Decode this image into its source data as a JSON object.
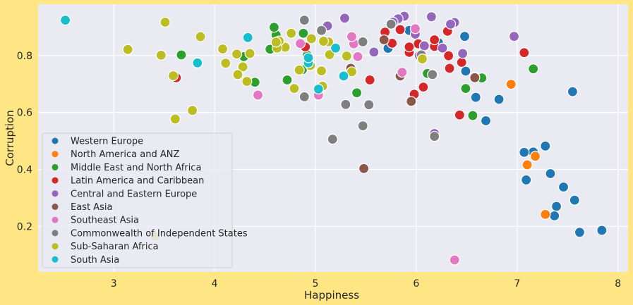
{
  "chart_data": {
    "type": "scatter",
    "title": "",
    "xlabel": "Happiness",
    "ylabel": "Corruption",
    "xlim": [
      2.25,
      8.1
    ],
    "ylim": [
      0.04,
      0.98
    ],
    "xticks": [
      3,
      4,
      5,
      6,
      7,
      8
    ],
    "yticks": [
      0.2,
      0.4,
      0.6,
      0.8
    ],
    "grid": true,
    "legend_position": "lower-left",
    "series": [
      {
        "name": "Western Europe",
        "color": "#1F77B4",
        "points": [
          [
            7.84,
            0.186
          ],
          [
            7.62,
            0.179
          ],
          [
            7.57,
            0.292
          ],
          [
            7.55,
            0.673
          ],
          [
            7.46,
            0.338
          ],
          [
            7.39,
            0.27
          ],
          [
            7.37,
            0.237
          ],
          [
            7.33,
            0.385
          ],
          [
            7.28,
            0.482
          ],
          [
            7.16,
            0.461
          ],
          [
            7.09,
            0.363
          ],
          [
            7.07,
            0.46
          ],
          [
            6.82,
            0.646
          ],
          [
            6.69,
            0.571
          ],
          [
            6.59,
            0.653
          ],
          [
            6.49,
            0.745
          ],
          [
            6.48,
            0.867
          ],
          [
            6.22,
            0.845
          ],
          [
            5.93,
            0.888
          ],
          [
            5.72,
            0.825
          ]
        ]
      },
      {
        "name": "North America and ANZ",
        "color": "#FF7F0E",
        "points": [
          [
            7.28,
            0.242
          ],
          [
            7.18,
            0.446
          ],
          [
            7.1,
            0.416
          ],
          [
            6.94,
            0.699
          ]
        ]
      },
      {
        "name": "Middle East and North Africa",
        "color": "#2CA02C",
        "points": [
          [
            7.16,
            0.753
          ],
          [
            6.65,
            0.721
          ],
          [
            6.56,
            0.589
          ],
          [
            6.49,
            0.684
          ],
          [
            6.11,
            0.737
          ],
          [
            5.41,
            0.669
          ],
          [
            4.92,
            0.801
          ],
          [
            4.88,
            0.878
          ],
          [
            4.87,
            0.75
          ],
          [
            4.72,
            0.714
          ],
          [
            4.61,
            0.872
          ],
          [
            4.59,
            0.899
          ],
          [
            4.55,
            0.822
          ],
          [
            4.4,
            0.706
          ],
          [
            4.29,
            0.796
          ],
          [
            3.67,
            0.802
          ]
        ]
      },
      {
        "name": "Latin America and Caribbean",
        "color": "#D62728",
        "points": [
          [
            7.07,
            0.81
          ],
          [
            6.58,
            0.724
          ],
          [
            6.45,
            0.776
          ],
          [
            6.43,
            0.591
          ],
          [
            6.33,
            0.755
          ],
          [
            6.32,
            0.799
          ],
          [
            6.31,
            0.885
          ],
          [
            6.18,
            0.832
          ],
          [
            6.18,
            0.855
          ],
          [
            6.07,
            0.689
          ],
          [
            6.02,
            0.841
          ],
          [
            5.98,
            0.664
          ],
          [
            5.93,
            0.811
          ],
          [
            5.93,
            0.83
          ],
          [
            5.84,
            0.891
          ],
          [
            5.76,
            0.843
          ],
          [
            5.69,
            0.882
          ],
          [
            5.54,
            0.714
          ],
          [
            4.9,
            0.83
          ],
          [
            3.62,
            0.722
          ]
        ]
      },
      {
        "name": "Central and Eastern Europe",
        "color": "#9467BD",
        "points": [
          [
            6.97,
            0.867
          ],
          [
            6.46,
            0.807
          ],
          [
            6.38,
            0.916
          ],
          [
            6.34,
            0.91
          ],
          [
            6.26,
            0.826
          ],
          [
            6.18,
            0.526
          ],
          [
            6.15,
            0.936
          ],
          [
            6.08,
            0.834
          ],
          [
            6.03,
            0.8
          ],
          [
            5.99,
            0.875
          ],
          [
            5.88,
            0.938
          ],
          [
            5.82,
            0.929
          ],
          [
            5.77,
            0.917
          ],
          [
            5.58,
            0.812
          ],
          [
            5.29,
            0.931
          ],
          [
            5.12,
            0.904
          ]
        ]
      },
      {
        "name": "East Asia",
        "color": "#8C564B",
        "points": [
          [
            6.58,
            0.722
          ],
          [
            5.95,
            0.639
          ],
          [
            5.84,
            0.728
          ],
          [
            5.68,
            0.855
          ],
          [
            5.48,
            0.403
          ],
          [
            5.35,
            0.755
          ]
        ]
      },
      {
        "name": "Southeast Asia",
        "color": "#E377C2",
        "points": [
          [
            6.38,
            0.082
          ],
          [
            5.99,
            0.894
          ],
          [
            5.86,
            0.741
          ],
          [
            5.42,
            0.796
          ],
          [
            5.38,
            0.841
          ],
          [
            5.36,
            0.866
          ],
          [
            5.03,
            0.661
          ],
          [
            4.85,
            0.842
          ],
          [
            4.43,
            0.661
          ]
        ]
      },
      {
        "name": "Commonwealth of Independent States",
        "color": "#7F7F7F",
        "points": [
          [
            6.18,
            0.516
          ],
          [
            6.16,
            0.733
          ],
          [
            6.05,
            0.802
          ],
          [
            5.75,
            0.91
          ],
          [
            5.53,
            0.627
          ],
          [
            5.47,
            0.553
          ],
          [
            5.47,
            0.848
          ],
          [
            5.3,
            0.628
          ],
          [
            5.17,
            0.506
          ],
          [
            5.06,
            0.888
          ],
          [
            4.89,
            0.924
          ],
          [
            4.89,
            0.655
          ]
        ]
      },
      {
        "name": "Sub-Saharan Africa",
        "color": "#BCBD22",
        "points": [
          [
            6.06,
            0.788
          ],
          [
            5.36,
            0.743
          ],
          [
            5.31,
            0.798
          ],
          [
            5.14,
            0.803
          ],
          [
            5.13,
            0.848
          ],
          [
            5.08,
            0.85
          ],
          [
            5.07,
            0.692
          ],
          [
            5.06,
            0.746
          ],
          [
            4.96,
            0.859
          ],
          [
            4.95,
            0.765
          ],
          [
            4.84,
            0.749
          ],
          [
            4.79,
            0.684
          ],
          [
            4.76,
            0.878
          ],
          [
            4.7,
            0.829
          ],
          [
            4.64,
            0.851
          ],
          [
            4.62,
            0.826
          ],
          [
            4.61,
            0.847
          ],
          [
            4.35,
            0.807
          ],
          [
            4.32,
            0.709
          ],
          [
            4.28,
            0.76
          ],
          [
            4.23,
            0.733
          ],
          [
            4.22,
            0.805
          ],
          [
            4.11,
            0.773
          ],
          [
            4.08,
            0.823
          ],
          [
            3.86,
            0.866
          ],
          [
            3.78,
            0.607
          ],
          [
            3.61,
            0.577
          ],
          [
            3.59,
            0.729
          ],
          [
            3.51,
            0.917
          ],
          [
            3.47,
            0.801
          ],
          [
            3.41,
            0.165
          ],
          [
            3.14,
            0.821
          ]
        ]
      },
      {
        "name": "South Asia",
        "color": "#17BECF",
        "points": [
          [
            5.28,
            0.728
          ],
          [
            5.2,
            0.826
          ],
          [
            5.03,
            0.682
          ],
          [
            4.93,
            0.774
          ],
          [
            4.93,
            0.792
          ],
          [
            4.33,
            0.863
          ],
          [
            3.83,
            0.774
          ],
          [
            2.52,
            0.924
          ]
        ]
      }
    ]
  }
}
